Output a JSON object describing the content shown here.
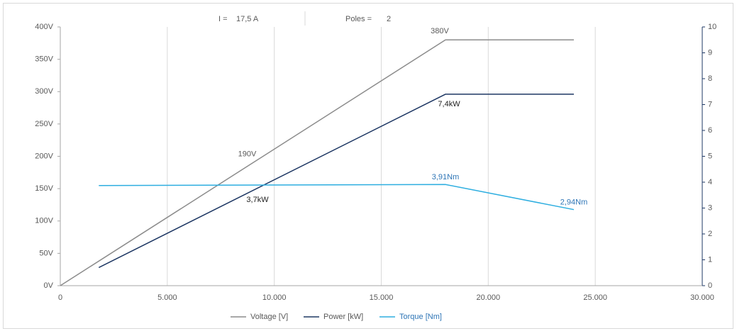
{
  "chart_data": {
    "type": "line",
    "header": {
      "current_label": "I =",
      "current_value": "17,5 A",
      "poles_label": "Poles =",
      "poles_value": "2"
    },
    "xlim": [
      0,
      30000
    ],
    "xticks": [
      {
        "value": 0,
        "label": "0"
      },
      {
        "value": 5000,
        "label": "5.000"
      },
      {
        "value": 10000,
        "label": "10.000"
      },
      {
        "value": 15000,
        "label": "15.000"
      },
      {
        "value": 20000,
        "label": "20.000"
      },
      {
        "value": 25000,
        "label": "25.000"
      },
      {
        "value": 30000,
        "label": "30.000"
      }
    ],
    "ylim": [
      0,
      400
    ],
    "yticks": [
      {
        "value": 0,
        "label": "0V"
      },
      {
        "value": 50,
        "label": "50V"
      },
      {
        "value": 100,
        "label": "100V"
      },
      {
        "value": 150,
        "label": "150V"
      },
      {
        "value": 200,
        "label": "200V"
      },
      {
        "value": 250,
        "label": "250V"
      },
      {
        "value": 300,
        "label": "300V"
      },
      {
        "value": 350,
        "label": "350V"
      },
      {
        "value": 400,
        "label": "400V"
      }
    ],
    "y2lim": [
      0,
      10
    ],
    "y2ticks": [
      0,
      1,
      2,
      3,
      4,
      5,
      6,
      7,
      8,
      9,
      10
    ],
    "grid": "x",
    "legend": "bottom",
    "series": [
      {
        "name": "Voltage [V]",
        "color": "#8c8c8c",
        "x": [
          0,
          9000,
          18000,
          24000
        ],
        "values": [
          0,
          190,
          380,
          380
        ],
        "value_labels": [
          null,
          "190V",
          "380V",
          null
        ]
      },
      {
        "name": "Power [kW]",
        "color": "#1f3864",
        "axis": "y2",
        "x": [
          1800,
          9050,
          18000,
          24000
        ],
        "values": [
          0.7,
          3.7,
          7.4,
          7.4
        ],
        "value_labels": [
          null,
          "3,7kW",
          "7,4kW",
          null
        ]
      },
      {
        "name": "Torque [Nm]",
        "color": "#2eaee0",
        "axis": "y2",
        "x": [
          1800,
          18000,
          24000
        ],
        "values": [
          3.87,
          3.91,
          2.94
        ],
        "value_labels": [
          null,
          "3,91Nm",
          "2,94Nm"
        ]
      }
    ]
  }
}
